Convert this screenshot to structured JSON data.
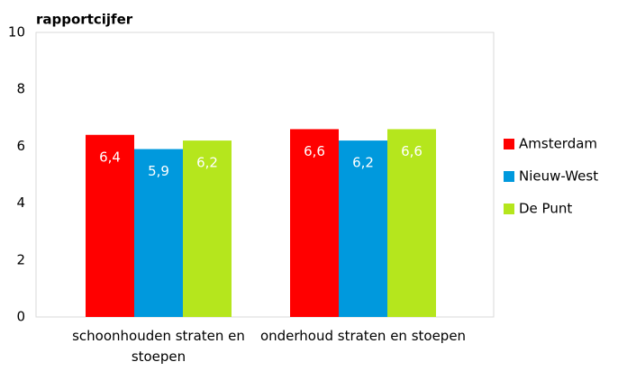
{
  "chart_data": {
    "type": "bar",
    "title": "rapportcijfer",
    "categories": [
      "schoonhouden straten en stoepen",
      "onderhoud straten en stoepen"
    ],
    "series": [
      {
        "name": "Amsterdam",
        "color": "#ff0000",
        "values": [
          6.4,
          6.6
        ],
        "value_labels": [
          "6,4",
          "6,6"
        ]
      },
      {
        "name": "Nieuw-West",
        "color": "#0099dd",
        "values": [
          5.9,
          6.2
        ],
        "value_labels": [
          "5,9",
          "6,2"
        ]
      },
      {
        "name": "De Punt",
        "color": "#b5e61d",
        "values": [
          6.2,
          6.6
        ],
        "value_labels": [
          "6,2",
          "6,6"
        ]
      }
    ],
    "ylim": [
      0,
      10
    ],
    "yticks": [
      0,
      2,
      4,
      6,
      8,
      10
    ],
    "grid": false,
    "legend": "right"
  }
}
